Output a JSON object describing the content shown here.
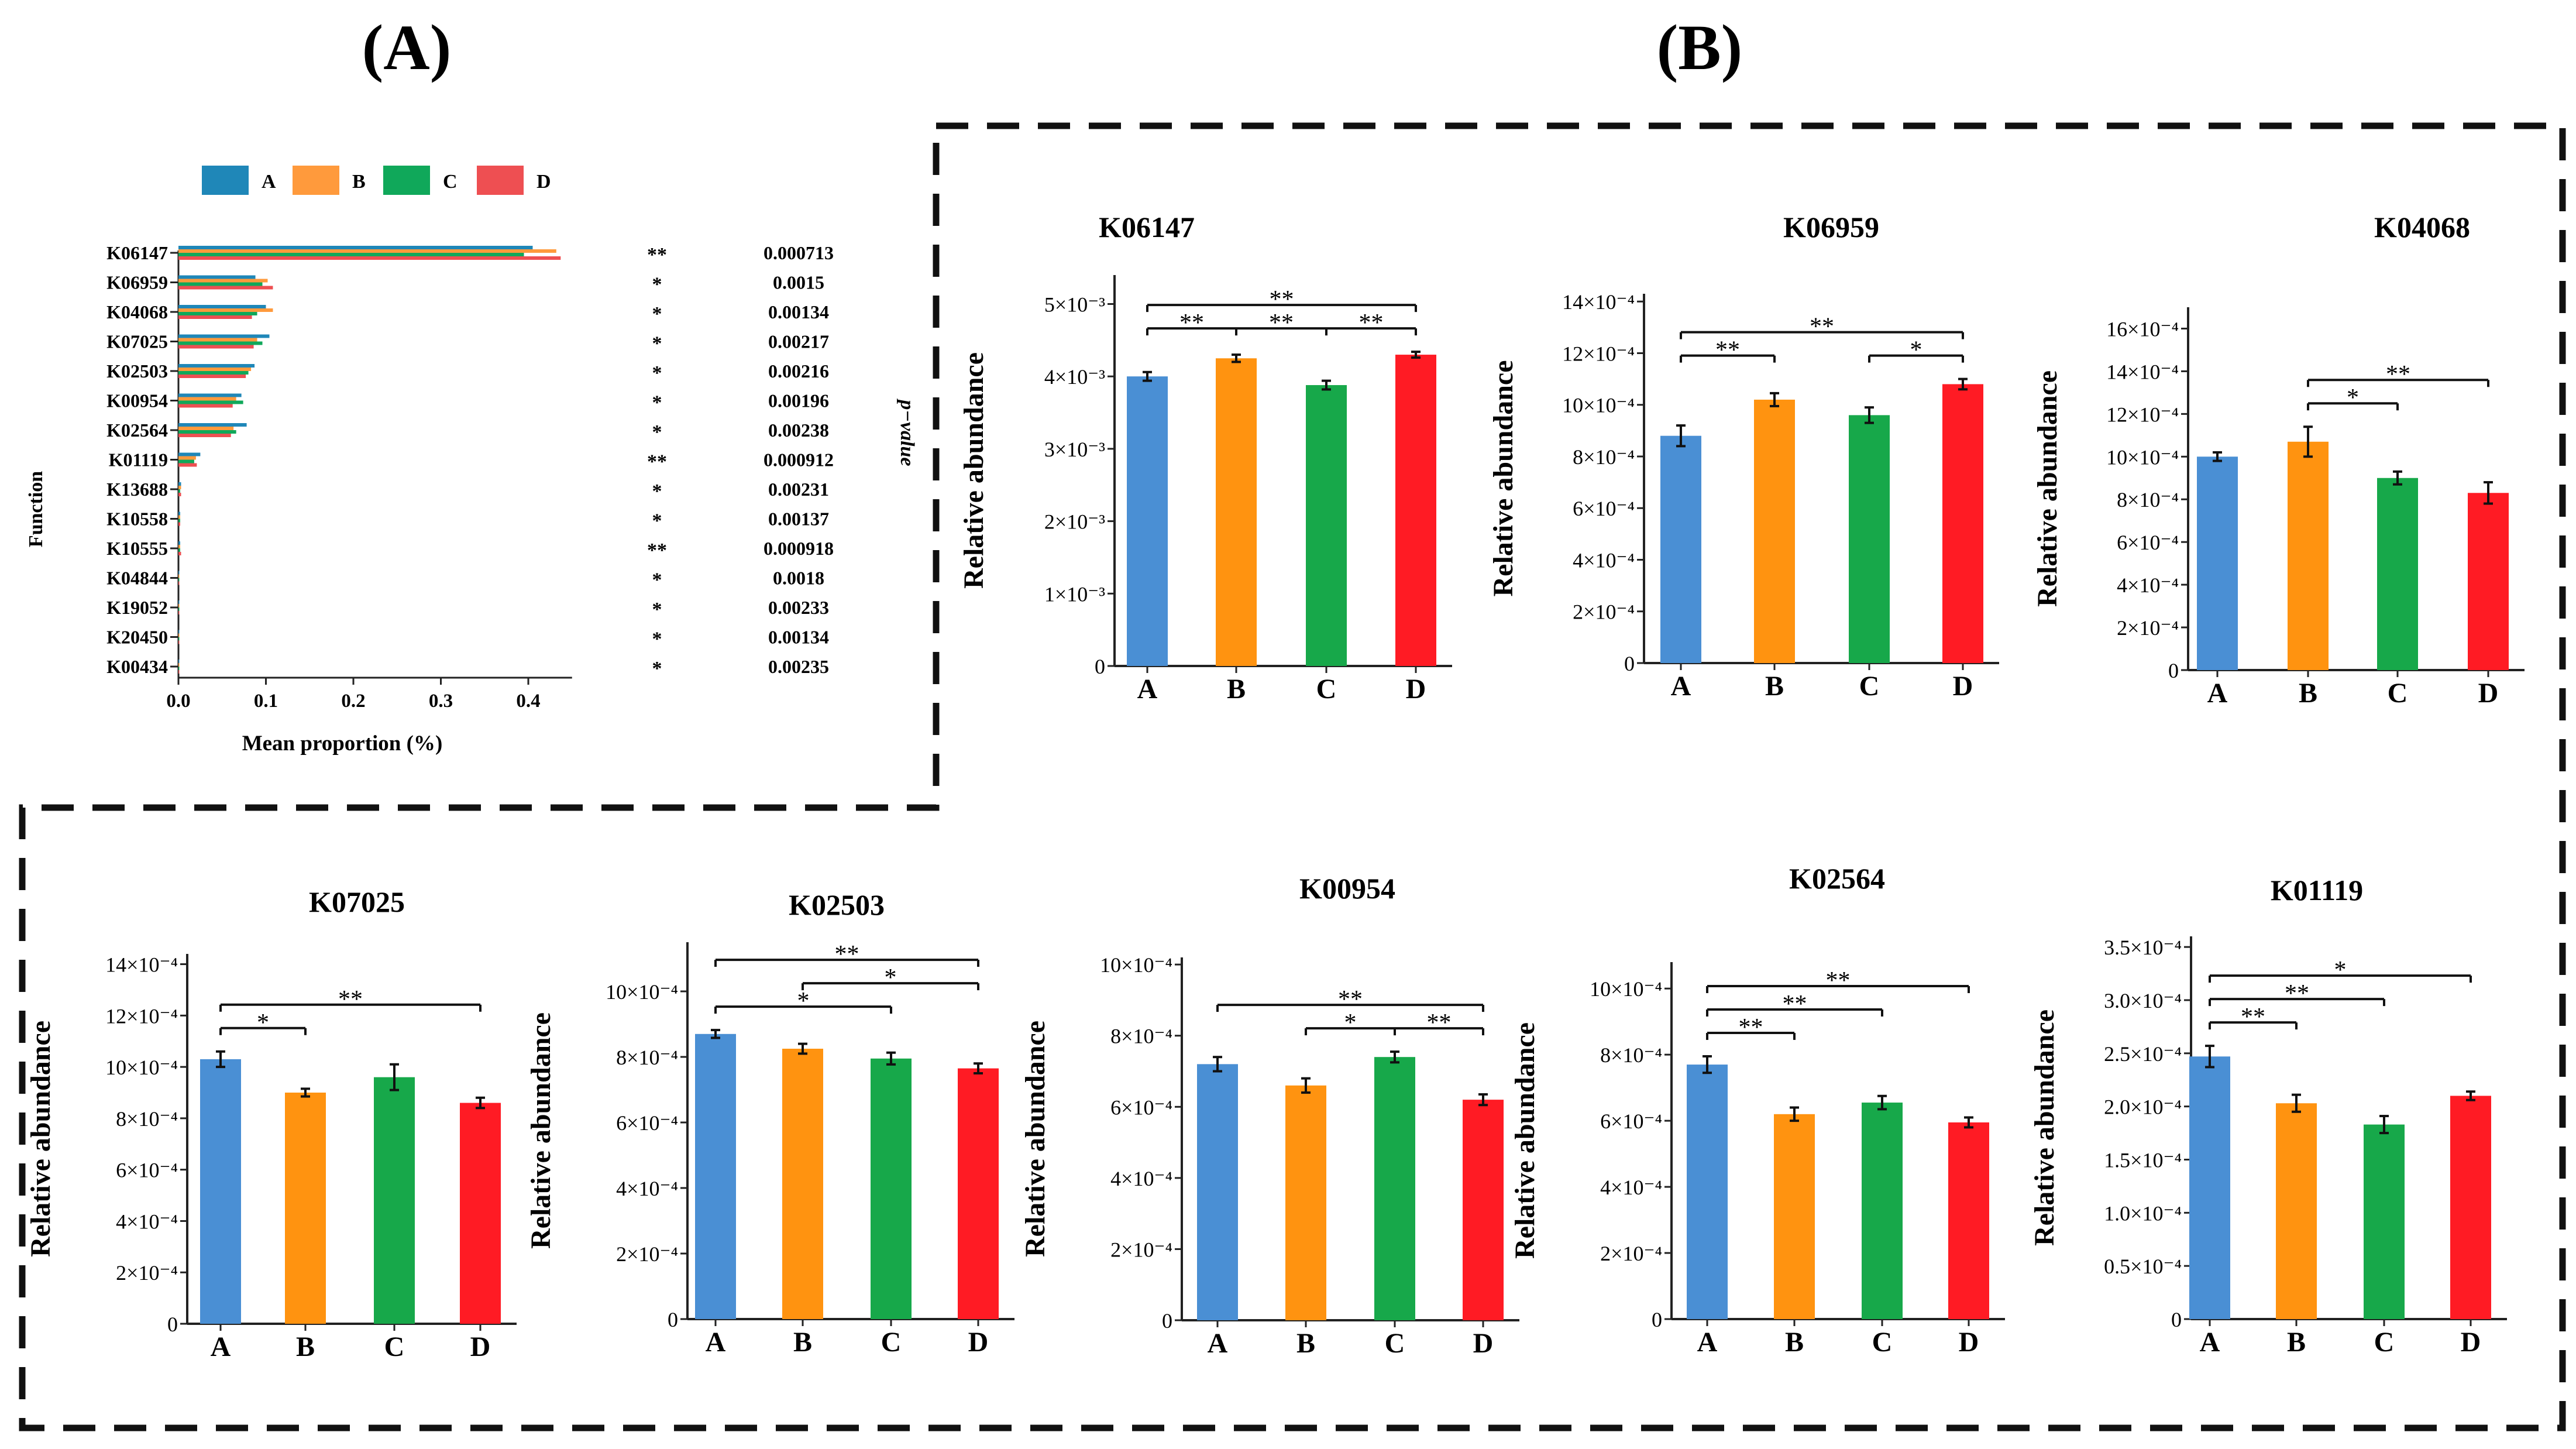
{
  "panel_labels": {
    "a": "(A)",
    "b": "(B)"
  },
  "colors": {
    "A": "#4a8fd4",
    "B": "#ff9310",
    "C": "#17a84a",
    "D": "#ff1b24",
    "legend_A": "#1f87b8",
    "legend_B": "#ff9a3c",
    "legend_C": "#10a85a",
    "legend_D": "#ee4f52"
  },
  "panel_a": {
    "legend": [
      "A",
      "B",
      "C",
      "D"
    ],
    "ylabel": "Function",
    "xlabel": "Mean proportion (%)",
    "pvalue_label": "p−value",
    "xticks": [
      "0.0",
      "0.1",
      "0.2",
      "0.3",
      "0.4"
    ],
    "rows": [
      {
        "name": "K06147",
        "values": [
          0.405,
          0.432,
          0.395,
          0.437
        ],
        "sig": "**",
        "p": "0.000713"
      },
      {
        "name": "K06959",
        "values": [
          0.088,
          0.102,
          0.096,
          0.108
        ],
        "sig": "*",
        "p": "0.0015"
      },
      {
        "name": "K04068",
        "values": [
          0.1,
          0.108,
          0.09,
          0.084
        ],
        "sig": "*",
        "p": "0.00134"
      },
      {
        "name": "K07025",
        "values": [
          0.104,
          0.09,
          0.096,
          0.086
        ],
        "sig": "*",
        "p": "0.00217"
      },
      {
        "name": "K02503",
        "values": [
          0.087,
          0.083,
          0.08,
          0.077
        ],
        "sig": "*",
        "p": "0.00216"
      },
      {
        "name": "K00954",
        "values": [
          0.072,
          0.066,
          0.074,
          0.062
        ],
        "sig": "*",
        "p": "0.00196"
      },
      {
        "name": "K02564",
        "values": [
          0.078,
          0.063,
          0.066,
          0.06
        ],
        "sig": "*",
        "p": "0.00238"
      },
      {
        "name": "K01119",
        "values": [
          0.025,
          0.02,
          0.018,
          0.021
        ],
        "sig": "**",
        "p": "0.000912"
      },
      {
        "name": "K13688",
        "values": [
          0.003,
          0.003,
          0.002,
          0.003
        ],
        "sig": "*",
        "p": "0.00231"
      },
      {
        "name": "K10558",
        "values": [
          0.002,
          0.002,
          0.002,
          0.002
        ],
        "sig": "*",
        "p": "0.00137"
      },
      {
        "name": "K10555",
        "values": [
          0.002,
          0.002,
          0.002,
          0.003
        ],
        "sig": "**",
        "p": "0.000918"
      },
      {
        "name": "K04844",
        "values": [
          0.001,
          0.001,
          0.001,
          0.001
        ],
        "sig": "*",
        "p": "0.0018"
      },
      {
        "name": "K19052",
        "values": [
          0.001,
          0.001,
          0.001,
          0.001
        ],
        "sig": "*",
        "p": "0.00233"
      },
      {
        "name": "K20450",
        "values": [
          0.001,
          0.001,
          0.001,
          0.001
        ],
        "sig": "*",
        "p": "0.00134"
      },
      {
        "name": "K00434",
        "values": [
          0.0005,
          0.0005,
          0.0005,
          0.0005
        ],
        "sig": "*",
        "p": "0.00235"
      }
    ]
  },
  "chart_data": [
    {
      "type": "bar",
      "title": "K06147",
      "ylabel": "Relative abundance",
      "categories": [
        "A",
        "B",
        "C",
        "D"
      ],
      "values": [
        4.0,
        4.25,
        3.88,
        4.3
      ],
      "errors": [
        0.06,
        0.05,
        0.06,
        0.04
      ],
      "ylim": [
        0,
        5.4
      ],
      "yticks": [
        {
          "v": 0,
          "t": "0"
        },
        {
          "v": 1,
          "t": "1×10⁻³"
        },
        {
          "v": 2,
          "t": "2×10⁻³"
        },
        {
          "v": 3,
          "t": "3×10⁻³"
        },
        {
          "v": 4,
          "t": "4×10⁻³"
        },
        {
          "v": 5,
          "t": "5×10⁻³"
        }
      ],
      "brackets": [
        {
          "from": 0,
          "to": 1,
          "level": 0,
          "label": "**"
        },
        {
          "from": 1,
          "to": 2,
          "level": 0,
          "label": "**"
        },
        {
          "from": 2,
          "to": 3,
          "level": 0,
          "label": "**"
        },
        {
          "from": 0,
          "to": 3,
          "level": 1,
          "label": "**"
        }
      ]
    },
    {
      "type": "bar",
      "title": "K06959",
      "ylabel": "Relative abundance",
      "categories": [
        "A",
        "B",
        "C",
        "D"
      ],
      "values": [
        8.8,
        10.2,
        9.6,
        10.8
      ],
      "errors": [
        0.4,
        0.25,
        0.3,
        0.2
      ],
      "ylim": [
        0,
        14.3
      ],
      "yticks": [
        {
          "v": 0,
          "t": "0"
        },
        {
          "v": 2,
          "t": "2×10⁻⁴"
        },
        {
          "v": 4,
          "t": "4×10⁻⁴"
        },
        {
          "v": 6,
          "t": "6×10⁻⁴"
        },
        {
          "v": 8,
          "t": "8×10⁻⁴"
        },
        {
          "v": 10,
          "t": "10×10⁻⁴"
        },
        {
          "v": 12,
          "t": "12×10⁻⁴"
        },
        {
          "v": 14,
          "t": "14×10⁻⁴"
        }
      ],
      "brackets": [
        {
          "from": 0,
          "to": 1,
          "level": 0,
          "label": "**"
        },
        {
          "from": 2,
          "to": 3,
          "level": 0,
          "label": "*"
        },
        {
          "from": 0,
          "to": 3,
          "level": 1,
          "label": "**"
        }
      ]
    },
    {
      "type": "bar",
      "title": "K04068",
      "ylabel": "Relative abundance",
      "categories": [
        "A",
        "B",
        "C",
        "D"
      ],
      "values": [
        10.0,
        10.7,
        9.0,
        8.3
      ],
      "errors": [
        0.2,
        0.7,
        0.3,
        0.5
      ],
      "ylim": [
        0,
        17
      ],
      "yticks": [
        {
          "v": 0,
          "t": "0"
        },
        {
          "v": 2,
          "t": "2×10⁻⁴"
        },
        {
          "v": 4,
          "t": "4×10⁻⁴"
        },
        {
          "v": 6,
          "t": "6×10⁻⁴"
        },
        {
          "v": 8,
          "t": "8×10⁻⁴"
        },
        {
          "v": 10,
          "t": "10×10⁻⁴"
        },
        {
          "v": 12,
          "t": "12×10⁻⁴"
        },
        {
          "v": 14,
          "t": "14×10⁻⁴"
        },
        {
          "v": 16,
          "t": "16×10⁻⁴"
        }
      ],
      "brackets": [
        {
          "from": 1,
          "to": 2,
          "level": 0,
          "label": "*"
        },
        {
          "from": 1,
          "to": 3,
          "level": 1,
          "label": "**"
        }
      ]
    },
    {
      "type": "bar",
      "title": "K07025",
      "ylabel": "Relative abundance",
      "categories": [
        "A",
        "B",
        "C",
        "D"
      ],
      "values": [
        10.3,
        9.0,
        9.6,
        8.6
      ],
      "errors": [
        0.3,
        0.15,
        0.5,
        0.2
      ],
      "ylim": [
        0,
        14.4
      ],
      "yticks": [
        {
          "v": 0,
          "t": "0"
        },
        {
          "v": 2,
          "t": "2×10⁻⁴"
        },
        {
          "v": 4,
          "t": "4×10⁻⁴"
        },
        {
          "v": 6,
          "t": "6×10⁻⁴"
        },
        {
          "v": 8,
          "t": "8×10⁻⁴"
        },
        {
          "v": 10,
          "t": "10×10⁻⁴"
        },
        {
          "v": 12,
          "t": "12×10⁻⁴"
        },
        {
          "v": 14,
          "t": "14×10⁻⁴"
        }
      ],
      "brackets": [
        {
          "from": 0,
          "to": 1,
          "level": 0,
          "label": "*"
        },
        {
          "from": 0,
          "to": 3,
          "level": 1,
          "label": "**"
        }
      ]
    },
    {
      "type": "bar",
      "title": "K02503",
      "ylabel": "Relative abundance",
      "categories": [
        "A",
        "B",
        "C",
        "D"
      ],
      "values": [
        8.7,
        8.25,
        7.95,
        7.65
      ],
      "errors": [
        0.12,
        0.15,
        0.18,
        0.15
      ],
      "ylim": [
        0,
        11.5
      ],
      "yticks": [
        {
          "v": 0,
          "t": "0"
        },
        {
          "v": 2,
          "t": "2×10⁻⁴"
        },
        {
          "v": 4,
          "t": "4×10⁻⁴"
        },
        {
          "v": 6,
          "t": "6×10⁻⁴"
        },
        {
          "v": 8,
          "t": "8×10⁻⁴"
        },
        {
          "v": 10,
          "t": "10×10⁻⁴"
        }
      ],
      "brackets": [
        {
          "from": 0,
          "to": 2,
          "level": 0,
          "label": "*"
        },
        {
          "from": 1,
          "to": 3,
          "level": 1,
          "label": "*"
        },
        {
          "from": 0,
          "to": 3,
          "level": 2,
          "label": "**"
        }
      ]
    },
    {
      "type": "bar",
      "title": "K00954",
      "ylabel": "Relative abundance",
      "categories": [
        "A",
        "B",
        "C",
        "D"
      ],
      "values": [
        7.2,
        6.6,
        7.4,
        6.2
      ],
      "errors": [
        0.2,
        0.2,
        0.15,
        0.15
      ],
      "ylim": [
        0,
        10.2
      ],
      "yticks": [
        {
          "v": 0,
          "t": "0"
        },
        {
          "v": 2,
          "t": "2×10⁻⁴"
        },
        {
          "v": 4,
          "t": "4×10⁻⁴"
        },
        {
          "v": 6,
          "t": "6×10⁻⁴"
        },
        {
          "v": 8,
          "t": "8×10⁻⁴"
        },
        {
          "v": 10,
          "t": "10×10⁻⁴"
        }
      ],
      "brackets": [
        {
          "from": 1,
          "to": 2,
          "level": 0,
          "label": "*"
        },
        {
          "from": 2,
          "to": 3,
          "level": 0,
          "label": "**"
        },
        {
          "from": 0,
          "to": 3,
          "level": 1,
          "label": "**"
        }
      ]
    },
    {
      "type": "bar",
      "title": "K02564",
      "ylabel": "Relative abundance",
      "categories": [
        "A",
        "B",
        "C",
        "D"
      ],
      "values": [
        7.7,
        6.2,
        6.55,
        5.95
      ],
      "errors": [
        0.25,
        0.2,
        0.2,
        0.15
      ],
      "ylim": [
        0,
        10.8
      ],
      "yticks": [
        {
          "v": 0,
          "t": "0"
        },
        {
          "v": 2,
          "t": "2×10⁻⁴"
        },
        {
          "v": 4,
          "t": "4×10⁻⁴"
        },
        {
          "v": 6,
          "t": "6×10⁻⁴"
        },
        {
          "v": 8,
          "t": "8×10⁻⁴"
        },
        {
          "v": 10,
          "t": "10×10⁻⁴"
        }
      ],
      "brackets": [
        {
          "from": 0,
          "to": 1,
          "level": 0,
          "label": "**"
        },
        {
          "from": 0,
          "to": 2,
          "level": 1,
          "label": "**"
        },
        {
          "from": 0,
          "to": 3,
          "level": 2,
          "label": "**"
        }
      ]
    },
    {
      "type": "bar",
      "title": "K01119",
      "ylabel": "Relative abundance",
      "categories": [
        "A",
        "B",
        "C",
        "D"
      ],
      "values": [
        2.47,
        2.03,
        1.83,
        2.1
      ],
      "errors": [
        0.1,
        0.08,
        0.08,
        0.04
      ],
      "ylim": [
        0,
        3.6
      ],
      "yticks": [
        {
          "v": 0,
          "t": "0"
        },
        {
          "v": 0.5,
          "t": "0.5×10⁻⁴"
        },
        {
          "v": 1.0,
          "t": "1.0×10⁻⁴"
        },
        {
          "v": 1.5,
          "t": "1.5×10⁻⁴"
        },
        {
          "v": 2.0,
          "t": "2.0×10⁻⁴"
        },
        {
          "v": 2.5,
          "t": "2.5×10⁻⁴"
        },
        {
          "v": 3.0,
          "t": "3.0×10⁻⁴"
        },
        {
          "v": 3.5,
          "t": "3.5×10⁻⁴"
        }
      ],
      "brackets": [
        {
          "from": 0,
          "to": 1,
          "level": 0,
          "label": "**"
        },
        {
          "from": 0,
          "to": 2,
          "level": 1,
          "label": "**"
        },
        {
          "from": 0,
          "to": 3,
          "level": 2,
          "label": "*"
        }
      ]
    }
  ]
}
